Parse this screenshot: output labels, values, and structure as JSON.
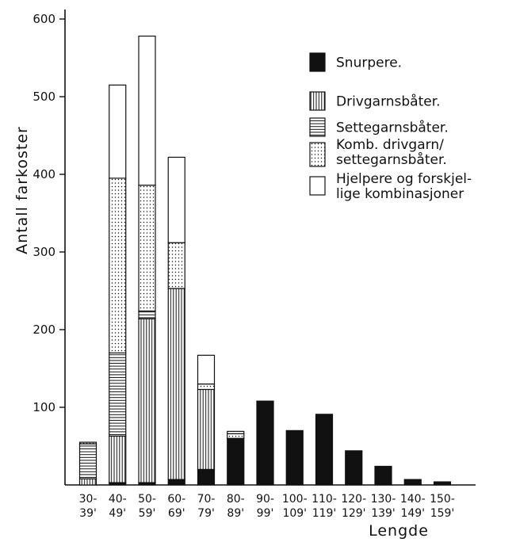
{
  "chart_data": {
    "type": "bar",
    "stacked": true,
    "title": "",
    "xlabel": "Lengde",
    "ylabel": "Antall farkoster",
    "ylim": [
      0,
      600
    ],
    "yticks": [
      100,
      200,
      300,
      400,
      500,
      600
    ],
    "grid": false,
    "legend_position": "top-right",
    "categories": [
      {
        "line1": "30-",
        "line2": "39'"
      },
      {
        "line1": "40-",
        "line2": "49'"
      },
      {
        "line1": "50-",
        "line2": "59'"
      },
      {
        "line1": "60-",
        "line2": "69'"
      },
      {
        "line1": "70-",
        "line2": "79'"
      },
      {
        "line1": "80-",
        "line2": "89'"
      },
      {
        "line1": "90-",
        "line2": "99'"
      },
      {
        "line1": "100-",
        "line2": "109'"
      },
      {
        "line1": "110-",
        "line2": "119'"
      },
      {
        "line1": "120-",
        "line2": "129'"
      },
      {
        "line1": "130-",
        "line2": "139'"
      },
      {
        "line1": "140-",
        "line2": "149'"
      },
      {
        "line1": "150-",
        "line2": "159'"
      }
    ],
    "series": [
      {
        "name": "Snurpere.",
        "pattern": "solid",
        "values": [
          0,
          3,
          3,
          7,
          20,
          60,
          108,
          70,
          91,
          44,
          24,
          7,
          4
        ]
      },
      {
        "name": "Drivgarnsbåter.",
        "pattern": "vertical",
        "values": [
          8,
          60,
          211,
          246,
          103,
          0,
          0,
          0,
          0,
          0,
          0,
          0,
          0
        ]
      },
      {
        "name": "Settegarnsbåter.",
        "pattern": "horizontal",
        "values": [
          45,
          107,
          10,
          0,
          0,
          0,
          0,
          0,
          0,
          0,
          0,
          0,
          0
        ]
      },
      {
        "name": "Komb. drivgarn/ settegarnsbåter.",
        "pattern": "dotted",
        "values": [
          2,
          225,
          162,
          59,
          7,
          6,
          0,
          0,
          0,
          0,
          0,
          0,
          0
        ]
      },
      {
        "name": "Hjelpere og forskjellige kombinasjoner",
        "pattern": "empty",
        "values": [
          0,
          120,
          192,
          110,
          37,
          3,
          0,
          0,
          0,
          0,
          0,
          0,
          0
        ]
      }
    ]
  },
  "legend": [
    {
      "lines": [
        "Snurpere."
      ]
    },
    {
      "lines": [
        "Drivgarnsbåter."
      ]
    },
    {
      "lines": [
        "Settegarnsbåter."
      ]
    },
    {
      "lines": [
        "Komb. drivgarn/",
        "settegarnsbåter."
      ]
    },
    {
      "lines": [
        "Hjelpere og forskjel-",
        "lige kombinasjoner"
      ]
    }
  ],
  "colors": {
    "ink": "#111111",
    "paper": "#ffffff"
  }
}
